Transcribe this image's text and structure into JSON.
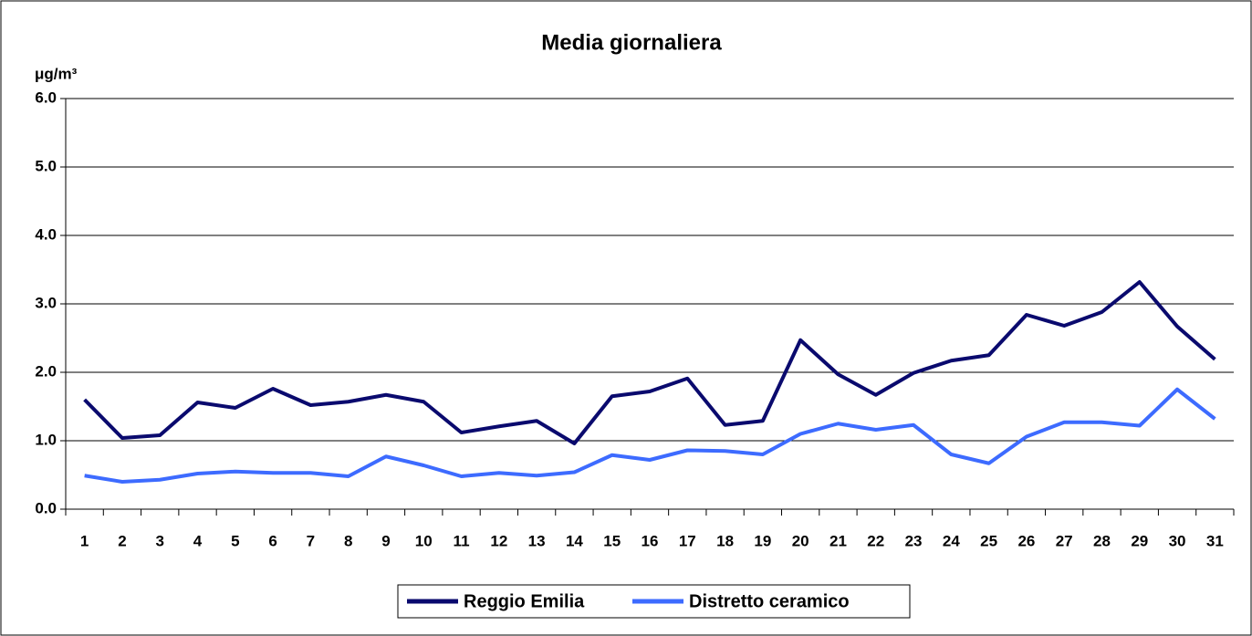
{
  "chart_data": {
    "type": "line",
    "title": "Media giornaliera",
    "y_label": "μg/m³",
    "categories": [
      "1",
      "2",
      "3",
      "4",
      "5",
      "6",
      "7",
      "8",
      "9",
      "10",
      "11",
      "12",
      "13",
      "14",
      "15",
      "16",
      "17",
      "18",
      "19",
      "20",
      "21",
      "22",
      "23",
      "24",
      "25",
      "26",
      "27",
      "28",
      "29",
      "30",
      "31"
    ],
    "series": [
      {
        "name": "Reggio Emilia",
        "color": "#0a0a6e",
        "values": [
          1.6,
          1.04,
          1.08,
          1.56,
          1.48,
          1.76,
          1.52,
          1.57,
          1.67,
          1.57,
          1.12,
          1.21,
          1.29,
          0.96,
          1.65,
          1.72,
          1.91,
          1.23,
          1.29,
          2.47,
          1.97,
          1.67,
          1.99,
          2.17,
          2.25,
          2.84,
          2.68,
          2.88,
          3.32,
          2.67,
          2.19
        ]
      },
      {
        "name": "Distretto ceramico",
        "color": "#3d6bff",
        "values": [
          0.49,
          0.4,
          0.43,
          0.52,
          0.55,
          0.53,
          0.53,
          0.48,
          0.77,
          0.64,
          0.48,
          0.53,
          0.49,
          0.54,
          0.79,
          0.72,
          0.86,
          0.85,
          0.8,
          1.1,
          1.25,
          1.16,
          1.23,
          0.8,
          0.67,
          1.06,
          1.27,
          1.27,
          1.22,
          1.75,
          1.32
        ]
      }
    ],
    "ylim": [
      0,
      6
    ],
    "yticks": [
      {
        "value": 0,
        "label": "0.0"
      },
      {
        "value": 1,
        "label": "1.0"
      },
      {
        "value": 2,
        "label": "2.0"
      },
      {
        "value": 3,
        "label": "3.0"
      },
      {
        "value": 4,
        "label": "4.0"
      },
      {
        "value": 5,
        "label": "5.0"
      },
      {
        "value": 6,
        "label": "6.0"
      }
    ],
    "grid": true,
    "legend": "bottom"
  }
}
